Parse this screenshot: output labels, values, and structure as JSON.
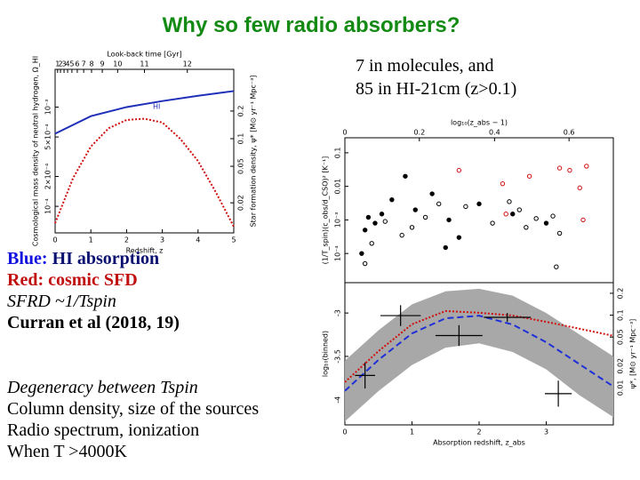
{
  "slide": {
    "title": "Why so few radio absorbers?",
    "note": [
      "7 in molecules, and",
      "85 in HI-21cm (z>0.1)"
    ],
    "blue_key": "Blue:",
    "blue_text": "HI absorption",
    "red_text": "Red: cosmic SFD",
    "sfrd": "SFRD ~1/Tspin",
    "ref": "Curran et al (2018, 19)",
    "points": [
      "Degeneracy between Tspin",
      "Column density, size of the sources",
      "Radio spectrum, ionization",
      "When T >4000K"
    ]
  },
  "chart_data": [
    {
      "type": "line",
      "top_xlabel": "Look-back time [Gyr]",
      "xlabel": "Redshift, z",
      "ylabel": "Cosmological mass density of neutral hydrogen, Ω_HI",
      "y2label": "Star formation density, ψ* [M⊙ yr⁻¹ Mpc⁻³]",
      "annotation": "HI",
      "xlim": [
        0,
        5
      ],
      "xticks": [
        0,
        1,
        2,
        3,
        4,
        5
      ],
      "top_xticks": [
        {
          "value": 0.07,
          "label": "1"
        },
        {
          "value": 0.15,
          "label": "2"
        },
        {
          "value": 0.25,
          "label": "3"
        },
        {
          "value": 0.35,
          "label": "4"
        },
        {
          "value": 0.47,
          "label": "5"
        },
        {
          "value": 0.62,
          "label": "6"
        },
        {
          "value": 0.8,
          "label": "7"
        },
        {
          "value": 1.02,
          "label": "8"
        },
        {
          "value": 1.32,
          "label": "9"
        },
        {
          "value": 1.75,
          "label": "10"
        },
        {
          "value": 2.5,
          "label": "11"
        },
        {
          "value": 3.7,
          "label": "12"
        }
      ],
      "ylog": true,
      "ylim": [
        5.4e-05,
        0.0024
      ],
      "yticks": [
        {
          "value": 0.0001,
          "label": "10⁻⁴"
        },
        {
          "value": 0.0002,
          "label": "2×10⁻⁴"
        },
        {
          "value": 0.0005,
          "label": "5×10⁻⁴"
        },
        {
          "value": 0.001,
          "label": "10⁻³"
        }
      ],
      "y2log": true,
      "y2lim": [
        0.0094,
        0.57
      ],
      "y2ticks": [
        0.02,
        0.05,
        0.1,
        0.2
      ],
      "series": [
        {
          "color": "#1f2fb8",
          "style": "solid",
          "x": [
            0,
            1,
            2,
            3,
            4,
            5
          ],
          "values": [
            0.00054,
            0.00081,
            0.001,
            0.00115,
            0.0013,
            0.00145
          ]
        },
        {
          "color": "#d01010",
          "style": "dotted",
          "axis": "y2",
          "x": [
            0,
            0.5,
            1,
            1.5,
            2,
            2.5,
            3,
            3.5,
            4,
            4.5,
            5
          ],
          "values": [
            0.012,
            0.037,
            0.082,
            0.13,
            0.16,
            0.165,
            0.15,
            0.1,
            0.057,
            0.026,
            0.011
          ]
        }
      ]
    },
    {
      "type": "scatter",
      "top_xlabel": "log₁₀(z_abs − 1)",
      "ylabel": "(1/T_spin)(c_obs/d_CSO)² [K⁻¹]",
      "xlim": [
        0,
        4
      ],
      "top_xticks": [
        0,
        {
          "value": 1.11,
          "label": "0.2"
        },
        {
          "value": 2.23,
          "label": "0.4"
        },
        {
          "value": 3.34,
          "label": "0.6"
        }
      ],
      "ylog": true,
      "ylim": [
        1.35e-05,
        0.28
      ],
      "yticks": [
        {
          "value": 0.0001,
          "label": "10⁻⁴"
        },
        {
          "value": 0.001,
          "label": "10⁻³"
        },
        0.01,
        0.1
      ],
      "series": [
        {
          "color": "#000000",
          "marker": "filled",
          "x": [
            0.3,
            0.35,
            0.45,
            0.55,
            0.7,
            0.9,
            1.05,
            1.3,
            1.55,
            1.7,
            2.0,
            2.5,
            3.0,
            0.25,
            1.5
          ],
          "values": [
            0.0005,
            0.0012,
            0.0008,
            0.0015,
            0.004,
            0.02,
            0.002,
            0.006,
            0.001,
            0.0003,
            0.003,
            0.0015,
            0.0008,
            0.0001,
            0.00015
          ]
        },
        {
          "color": "#000000",
          "marker": "open",
          "x": [
            0.4,
            0.6,
            0.85,
            1.0,
            1.2,
            1.4,
            1.8,
            2.2,
            2.45,
            2.6,
            2.7,
            2.85,
            3.1,
            3.2,
            0.3,
            3.15
          ],
          "values": [
            0.0002,
            0.0009,
            0.00035,
            0.0006,
            0.0012,
            0.003,
            0.0025,
            0.0008,
            0.0035,
            0.002,
            0.0006,
            0.0011,
            0.0013,
            0.0004,
            5e-05,
            4e-05
          ]
        },
        {
          "color": "#d01010",
          "marker": "open",
          "x": [
            1.7,
            2.35,
            2.75,
            3.2,
            3.35,
            3.5,
            3.6,
            3.55,
            2.4
          ],
          "values": [
            0.03,
            0.012,
            0.02,
            0.035,
            0.03,
            0.009,
            0.04,
            0.001,
            0.0015
          ]
        }
      ]
    },
    {
      "type": "line",
      "xlabel": "Absorption redshift, z_abs",
      "ylabel": "log₁₀(binned)",
      "y2label": "ψ*, [M⊙ yr⁻¹ Mpc⁻³]",
      "xlim": [
        0,
        4
      ],
      "xticks": [
        0,
        1,
        2,
        3
      ],
      "ylim": [
        -4.29,
        -2.65
      ],
      "yticks": [
        -4,
        -3.5,
        -3
      ],
      "y2log": true,
      "y2lim": [
        0.0031,
        0.28
      ],
      "y2ticks": [
        0.01,
        0.02,
        0.05,
        0.1,
        0.2
      ],
      "band": {
        "color": "#a8a8a8",
        "x": [
          0,
          0.5,
          1,
          1.5,
          2,
          2.5,
          3,
          3.5,
          4
        ],
        "upper": [
          -3.55,
          -3.2,
          -2.9,
          -2.75,
          -2.72,
          -2.8,
          -3.0,
          -3.25,
          -3.5
        ],
        "lower": [
          -4.25,
          -3.9,
          -3.6,
          -3.4,
          -3.35,
          -3.45,
          -3.65,
          -3.95,
          -4.2
        ]
      },
      "series": [
        {
          "color": "#d01010",
          "style": "dotted",
          "axis": "y2",
          "x": [
            0,
            0.5,
            1,
            1.5,
            2,
            2.5,
            3,
            3.5,
            4
          ],
          "values": [
            0.012,
            0.032,
            0.075,
            0.114,
            0.108,
            0.099,
            0.081,
            0.065,
            0.052
          ]
        },
        {
          "color": "#1f2fd8",
          "style": "dashed",
          "x": [
            0,
            0.5,
            1,
            1.5,
            2,
            2.5,
            3,
            3.5,
            4
          ],
          "values": [
            -3.898,
            -3.541,
            -3.235,
            -3.061,
            -3.031,
            -3.133,
            -3.337,
            -3.592,
            -3.847
          ]
        }
      ],
      "errorbars": {
        "color": "#000000",
        "x": [
          0.3,
          0.83,
          1.7,
          2.42,
          3.18
        ],
        "xerr": [
          0.15,
          0.3,
          0.35,
          0.35,
          0.2
        ],
        "values": [
          -3.72,
          -3.03,
          -3.26,
          -3.05,
          -3.93
        ],
        "yerr": [
          0.15,
          0.12,
          0.12,
          0.05,
          0.15
        ]
      }
    }
  ]
}
